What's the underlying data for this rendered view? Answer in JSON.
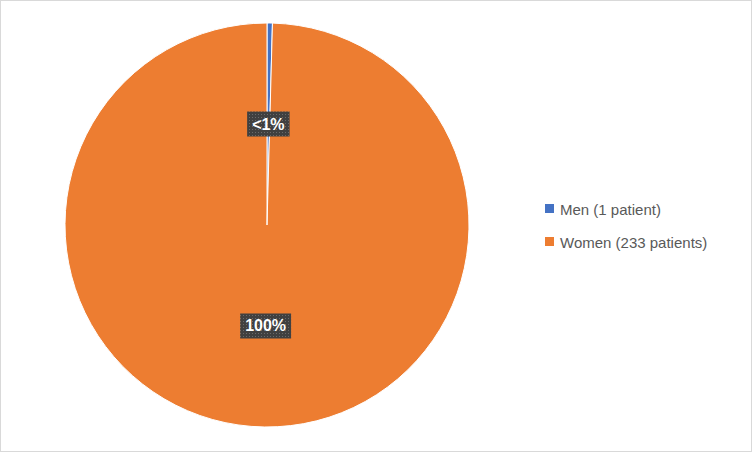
{
  "chart_data": {
    "type": "pie",
    "categories": [
      "Men (1 patient)",
      "Women (233 patients)"
    ],
    "values": [
      0.43,
      99.57
    ],
    "value_labels": [
      "<1%",
      "100%"
    ],
    "colors": [
      "#4472c4",
      "#ed7d31"
    ],
    "data_labels": true,
    "legend": "right"
  }
}
